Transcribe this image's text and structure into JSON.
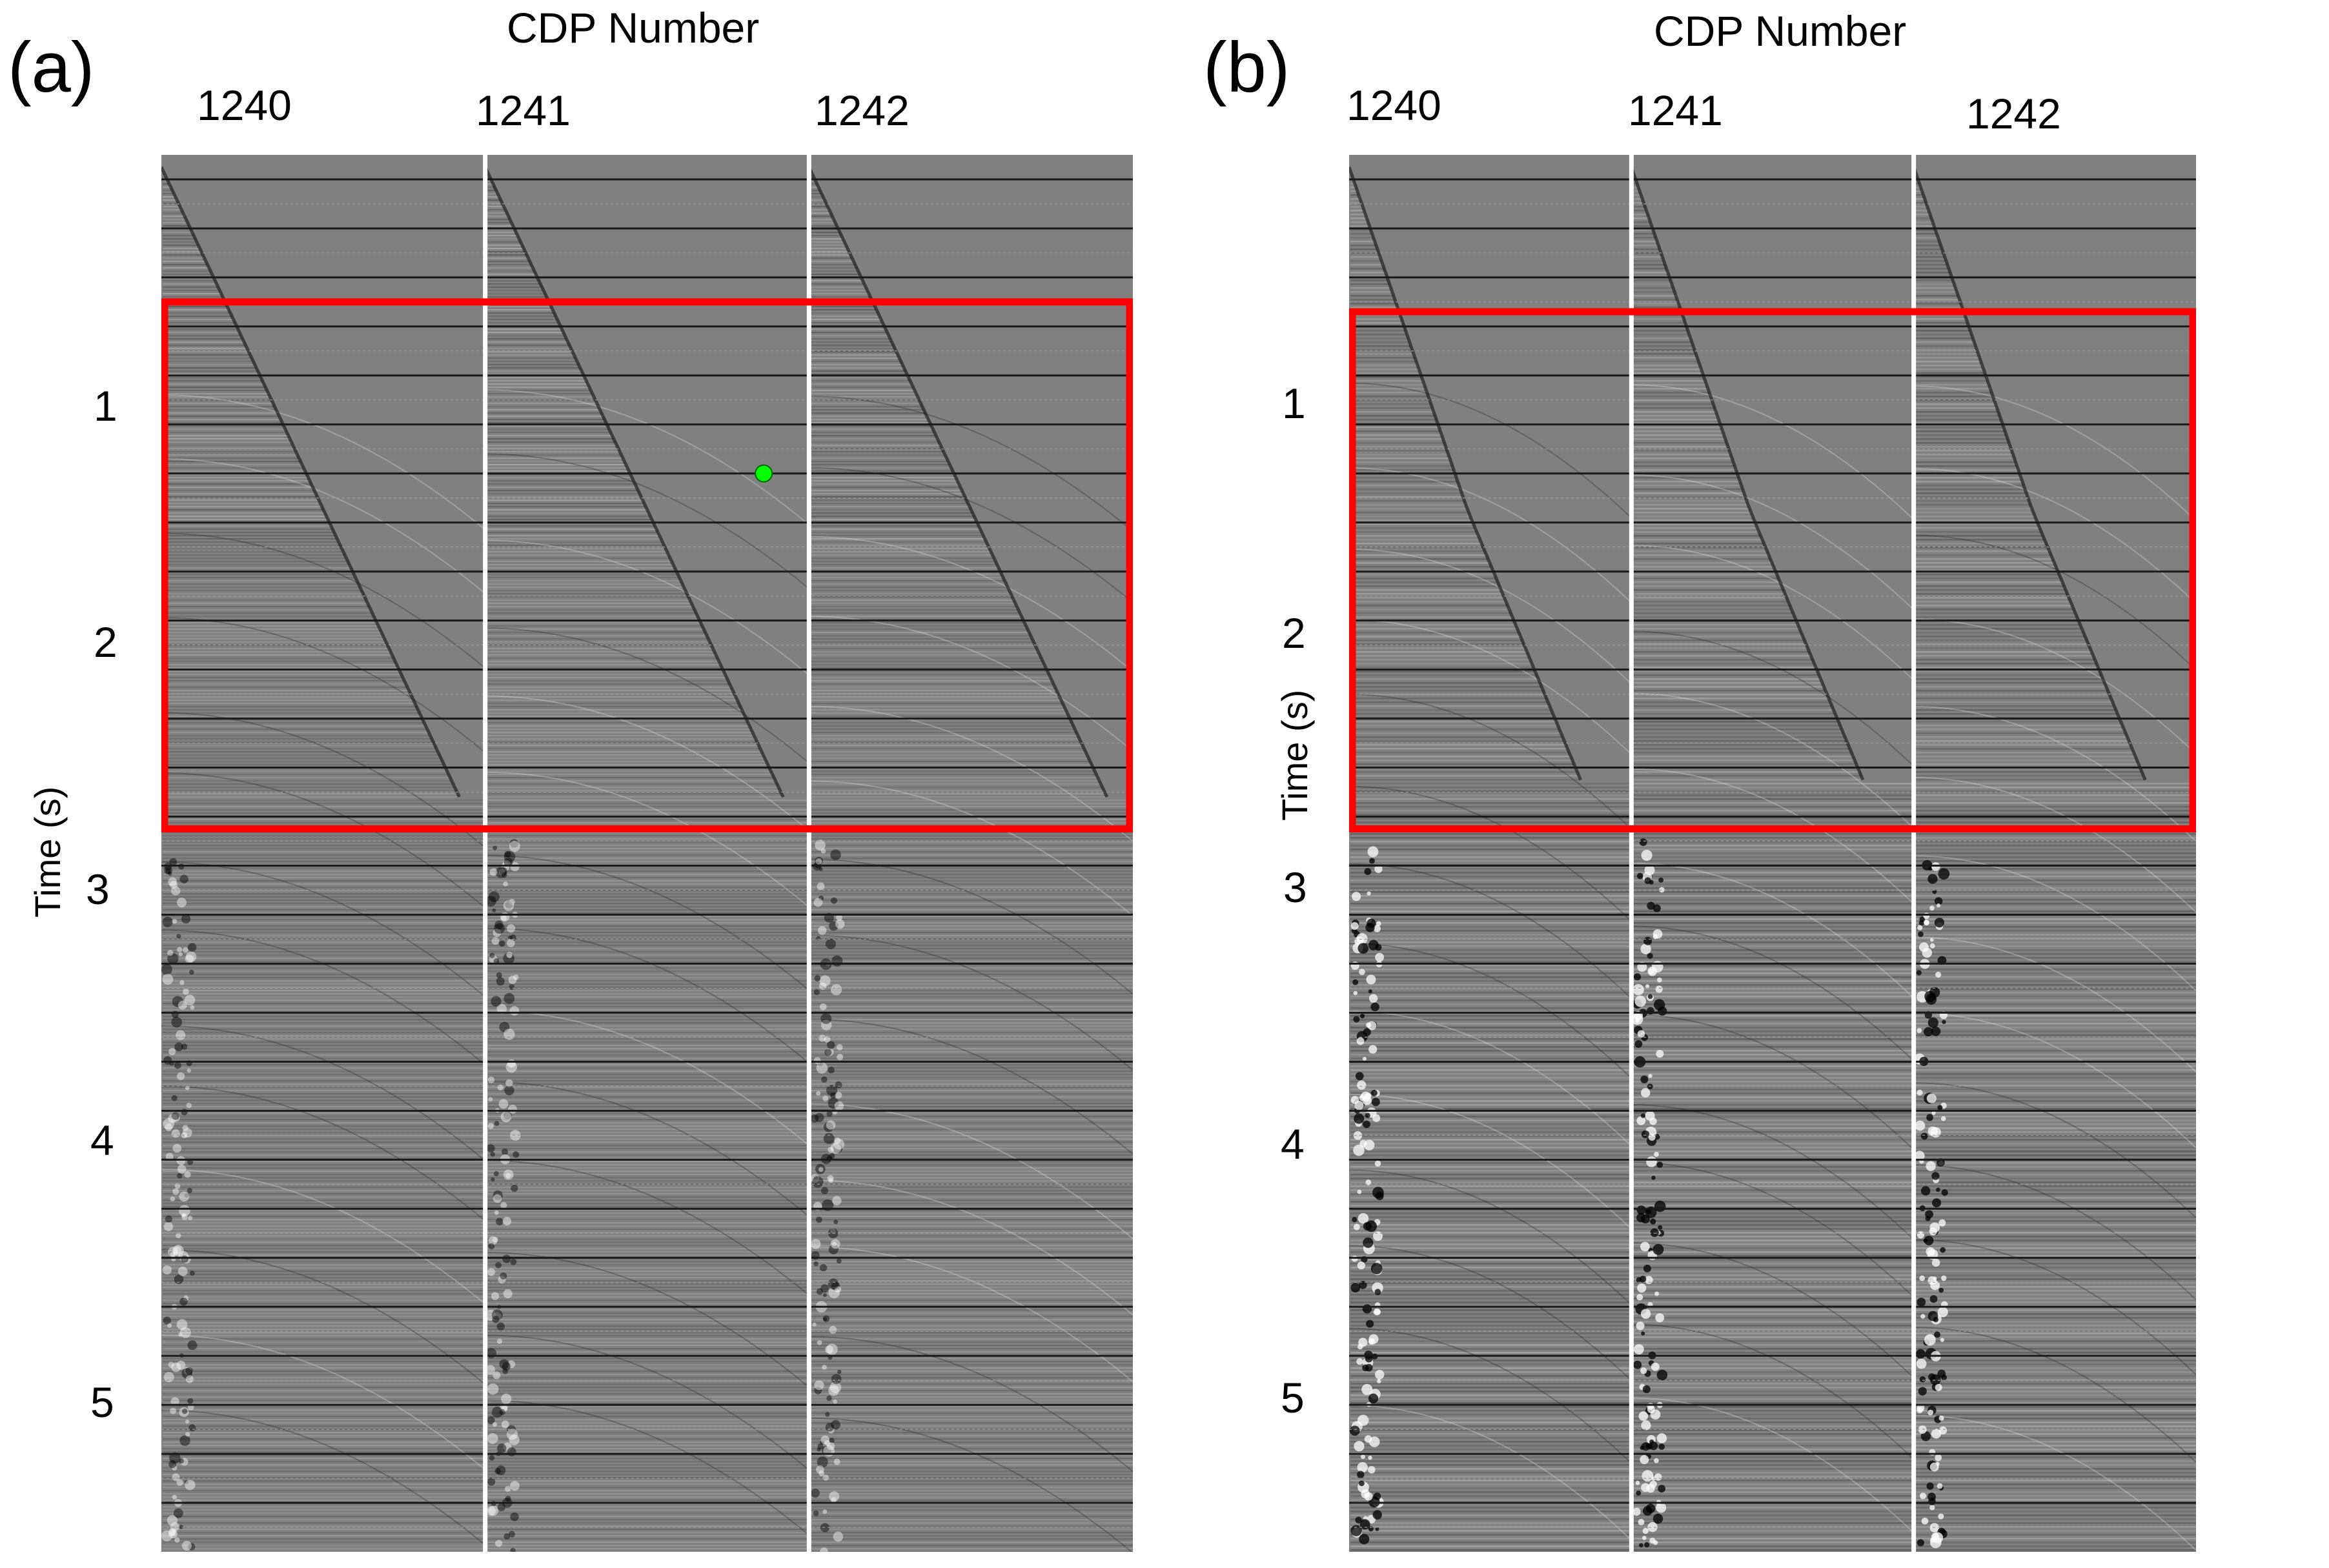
{
  "chart_data": [
    {
      "type": "heatmap",
      "panel_label": "(a)",
      "title": "",
      "xlabel": "CDP Number",
      "ylabel": "Time (s)",
      "x_ticks": [
        "1240",
        "1241",
        "1242"
      ],
      "y_ticks": [
        "1",
        "2",
        "3",
        "4",
        "5"
      ],
      "ylim": [
        0.0,
        5.7
      ],
      "gather_count": 3,
      "grid": true,
      "highlight_box": {
        "color": "#ff0000",
        "time_range": [
          0.6,
          2.75
        ]
      },
      "marker": {
        "color": "#00ff00",
        "time": 1.3,
        "gather": "1241"
      }
    },
    {
      "type": "heatmap",
      "panel_label": "(b)",
      "title": "",
      "xlabel": "CDP Number",
      "ylabel": "Time (s)",
      "x_ticks": [
        "1240",
        "1241",
        "1242"
      ],
      "y_ticks": [
        "1",
        "2",
        "3",
        "4",
        "5"
      ],
      "ylim": [
        0.0,
        5.7
      ],
      "gather_count": 3,
      "grid": true,
      "highlight_box": {
        "color": "#ff0000",
        "time_range": [
          0.64,
          2.75
        ]
      }
    }
  ],
  "colors": {
    "background": "#808080",
    "separator": "#ffffff",
    "grid_line": "#1a1a1a",
    "box": "#ff0000",
    "marker": "#00ff00"
  }
}
